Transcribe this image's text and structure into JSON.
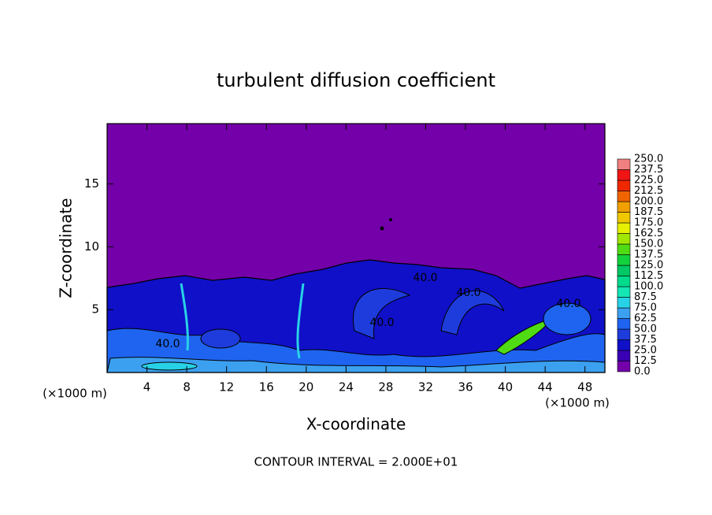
{
  "chart_data": {
    "type": "contour",
    "title": "turbulent diffusion coefficient",
    "x_label": "X-coordinate",
    "y_label": "Z-coordinate",
    "x_unit": "(×1000 m)",
    "y_unit": "(×1000 m)",
    "xlim": [
      0,
      50
    ],
    "xticks": [
      4,
      8,
      12,
      16,
      20,
      24,
      28,
      32,
      36,
      40,
      44,
      48
    ],
    "ylim": [
      0,
      19.8
    ],
    "yticks": [
      5,
      10,
      15
    ],
    "contour_labels": [
      "40.0",
      "40.0",
      "40.0",
      "40.0",
      "40.0"
    ],
    "footer": "CONTOUR INTERVAL = 2.000E+01",
    "colorbar": {
      "levels": [
        {
          "value": 0,
          "label": "0.0"
        },
        12.5,
        {
          "value": 25,
          "label": "25.0"
        },
        37.5,
        {
          "value": 50,
          "label": "50.0"
        },
        62.5,
        {
          "value": 75,
          "label": "75.0"
        },
        87.5,
        {
          "value": 100,
          "label": "100.0"
        },
        112.5,
        {
          "value": 125,
          "label": "125.0"
        },
        137.5,
        {
          "value": 150,
          "label": "150.0"
        },
        162.5,
        {
          "value": 175,
          "label": "175.0"
        },
        187.5,
        {
          "value": 200,
          "label": "200.0"
        },
        212.5,
        {
          "value": 225,
          "label": "225.0"
        },
        237.5,
        {
          "value": 250,
          "label": "250.0"
        }
      ],
      "colors": [
        "#7400aa",
        "#3a00b4",
        "#1010c8",
        "#1e3cdc",
        "#1e64f0",
        "#3ca0f0",
        "#28d2e6",
        "#14e6b4",
        "#00dc8c",
        "#00c864",
        "#14d23c",
        "#50dc14",
        "#a0e600",
        "#e6f000",
        "#f0c800",
        "#f0a000",
        "#f06400",
        "#f02800",
        "#f01414",
        "#f08080"
      ]
    }
  }
}
